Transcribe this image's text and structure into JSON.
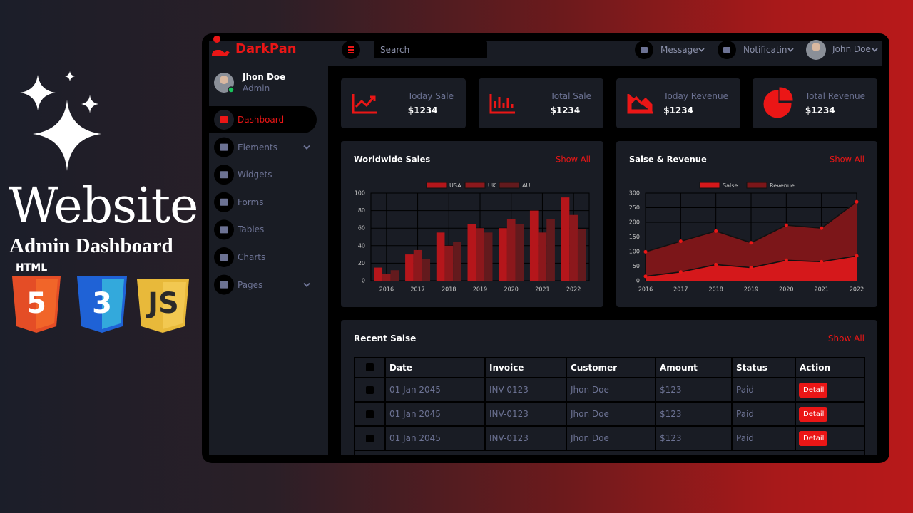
{
  "promo": {
    "title": "Website",
    "subtitle": "Admin Dashboard",
    "html_label": "HTML",
    "badges": [
      "5",
      "3",
      "JS"
    ]
  },
  "brand": "DarkPan",
  "topbar": {
    "search": "Search",
    "message": "Message",
    "notification": "Notificatin",
    "user": "John Doe"
  },
  "profile": {
    "name": "Jhon Doe",
    "role": "Admin"
  },
  "nav": [
    "Dashboard",
    "Elements",
    "Widgets",
    "Forms",
    "Tables",
    "Charts",
    "Pages"
  ],
  "stats": [
    {
      "label": "Today Sale",
      "value": "$1234"
    },
    {
      "label": "Total Sale",
      "value": "$1234"
    },
    {
      "label": "Today Revenue",
      "value": "$1234"
    },
    {
      "label": "Total Revenue",
      "value": "$1234"
    }
  ],
  "show_all": "Show All",
  "chart_data": [
    {
      "type": "bar",
      "title": "Worldwide Sales",
      "categories": [
        "2016",
        "2017",
        "2018",
        "2019",
        "2020",
        "2021",
        "2022"
      ],
      "series": [
        {
          "name": "USA",
          "color": "#b5161b",
          "values": [
            15,
            30,
            55,
            65,
            60,
            80,
            95
          ]
        },
        {
          "name": "UK",
          "color": "#8c181c",
          "values": [
            8,
            35,
            40,
            60,
            70,
            55,
            75
          ]
        },
        {
          "name": "AU",
          "color": "#631a1d",
          "values": [
            12,
            25,
            44,
            55,
            65,
            70,
            59
          ]
        }
      ],
      "ylim": [
        0,
        100
      ],
      "yticks": [
        0,
        20,
        40,
        60,
        80,
        100
      ],
      "grid": true,
      "legend": "top"
    },
    {
      "type": "area",
      "title": "Salse & Revenue",
      "categories": [
        "2016",
        "2017",
        "2018",
        "2019",
        "2020",
        "2021",
        "2022"
      ],
      "series": [
        {
          "name": "Salse",
          "color": "#d5181b",
          "values": [
            15,
            30,
            55,
            45,
            70,
            65,
            85
          ]
        },
        {
          "name": "Revenue",
          "color": "#7c1619",
          "values": [
            99,
            135,
            170,
            130,
            190,
            180,
            270
          ]
        }
      ],
      "ylim": [
        0,
        300
      ],
      "yticks": [
        0,
        50,
        100,
        150,
        200,
        250,
        300
      ],
      "grid": true,
      "legend": "top"
    }
  ],
  "table": {
    "title": "Recent Salse",
    "columns": [
      "Date",
      "Invoice",
      "Customer",
      "Amount",
      "Status",
      "Action"
    ],
    "rows": [
      [
        "01 Jan 2045",
        "INV-0123",
        "Jhon Doe",
        "$123",
        "Paid",
        "Detail"
      ],
      [
        "01 Jan 2045",
        "INV-0123",
        "Jhon Doe",
        "$123",
        "Paid",
        "Detail"
      ],
      [
        "01 Jan 2045",
        "INV-0123",
        "Jhon Doe",
        "$123",
        "Paid",
        "Detail"
      ]
    ]
  }
}
